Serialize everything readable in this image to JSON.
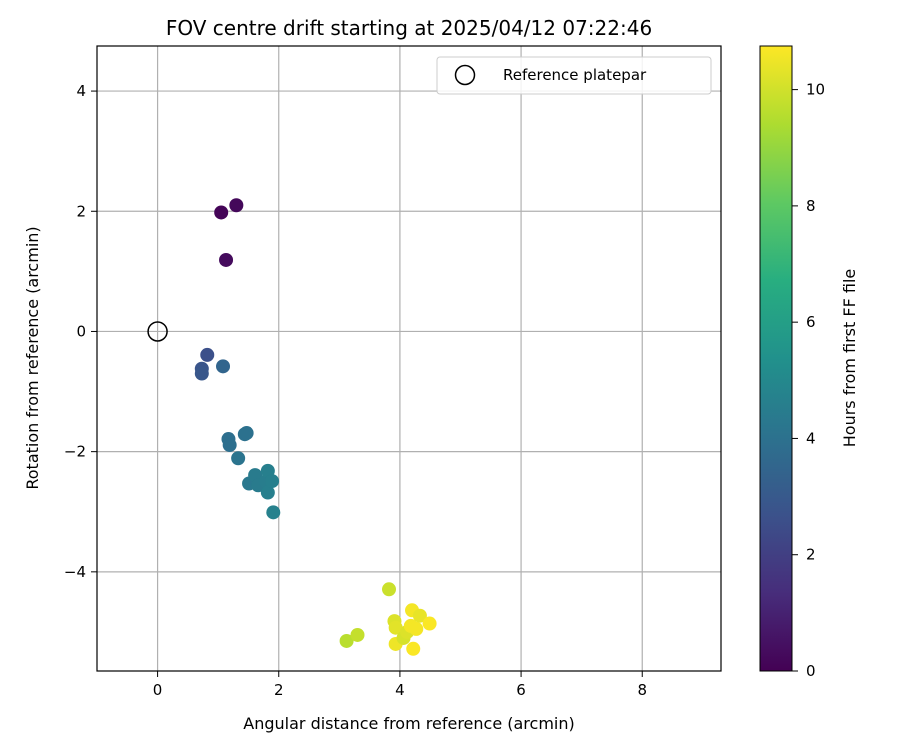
{
  "chart_data": {
    "type": "scatter",
    "title": "FOV centre drift starting at 2025/04/12 07:22:46",
    "xlabel": "Angular distance from reference (arcmin)",
    "ylabel": "Rotation from reference (arcmin)",
    "xlim": [
      -1.0,
      9.3
    ],
    "ylim": [
      -5.65,
      4.75
    ],
    "xticks": [
      0,
      2,
      4,
      6,
      8
    ],
    "yticks": [
      -4,
      -2,
      0,
      2,
      4
    ],
    "grid": true,
    "legend": {
      "placement": "top-right",
      "entries": [
        "Reference platepar"
      ]
    },
    "reference_point": {
      "name": "Reference platepar",
      "x": 0,
      "y": 0
    },
    "colorbar": {
      "label": "Hours from first FF file",
      "colormap": "viridis",
      "range": [
        0,
        10.75
      ],
      "ticks": [
        0,
        2,
        4,
        6,
        8,
        10
      ]
    },
    "points": [
      {
        "x": 1.05,
        "y": 1.98,
        "hours": 0.1
      },
      {
        "x": 1.3,
        "y": 2.1,
        "hours": 0.2
      },
      {
        "x": 1.13,
        "y": 1.19,
        "hours": 0.3
      },
      {
        "x": 0.82,
        "y": -0.39,
        "hours": 2.6
      },
      {
        "x": 0.73,
        "y": -0.62,
        "hours": 2.8
      },
      {
        "x": 0.73,
        "y": -0.7,
        "hours": 2.9
      },
      {
        "x": 1.08,
        "y": -0.58,
        "hours": 3.5
      },
      {
        "x": 1.17,
        "y": -1.79,
        "hours": 3.9
      },
      {
        "x": 1.19,
        "y": -1.89,
        "hours": 3.9
      },
      {
        "x": 1.44,
        "y": -1.71,
        "hours": 4.0
      },
      {
        "x": 1.47,
        "y": -1.69,
        "hours": 4.0
      },
      {
        "x": 1.33,
        "y": -2.11,
        "hours": 4.1
      },
      {
        "x": 1.51,
        "y": -2.53,
        "hours": 4.3
      },
      {
        "x": 1.61,
        "y": -2.39,
        "hours": 4.4
      },
      {
        "x": 1.66,
        "y": -2.56,
        "hours": 4.4
      },
      {
        "x": 1.79,
        "y": -2.49,
        "hours": 4.5
      },
      {
        "x": 1.82,
        "y": -2.32,
        "hours": 4.6
      },
      {
        "x": 1.82,
        "y": -2.68,
        "hours": 4.6
      },
      {
        "x": 1.89,
        "y": -2.49,
        "hours": 4.6
      },
      {
        "x": 1.91,
        "y": -3.01,
        "hours": 4.7
      },
      {
        "x": 3.82,
        "y": -4.29,
        "hours": 9.9
      },
      {
        "x": 3.12,
        "y": -5.15,
        "hours": 9.6
      },
      {
        "x": 3.3,
        "y": -5.05,
        "hours": 9.8
      },
      {
        "x": 3.91,
        "y": -4.82,
        "hours": 10.2
      },
      {
        "x": 3.93,
        "y": -4.93,
        "hours": 10.3
      },
      {
        "x": 3.93,
        "y": -5.2,
        "hours": 10.5
      },
      {
        "x": 4.06,
        "y": -5.1,
        "hours": 10.1
      },
      {
        "x": 4.12,
        "y": -5.0,
        "hours": 10.2
      },
      {
        "x": 4.18,
        "y": -4.9,
        "hours": 10.6
      },
      {
        "x": 4.2,
        "y": -4.64,
        "hours": 10.6
      },
      {
        "x": 4.27,
        "y": -4.95,
        "hours": 10.6
      },
      {
        "x": 4.33,
        "y": -4.73,
        "hours": 10.4
      },
      {
        "x": 4.22,
        "y": -5.28,
        "hours": 10.7
      },
      {
        "x": 4.49,
        "y": -4.86,
        "hours": 10.7
      }
    ]
  }
}
